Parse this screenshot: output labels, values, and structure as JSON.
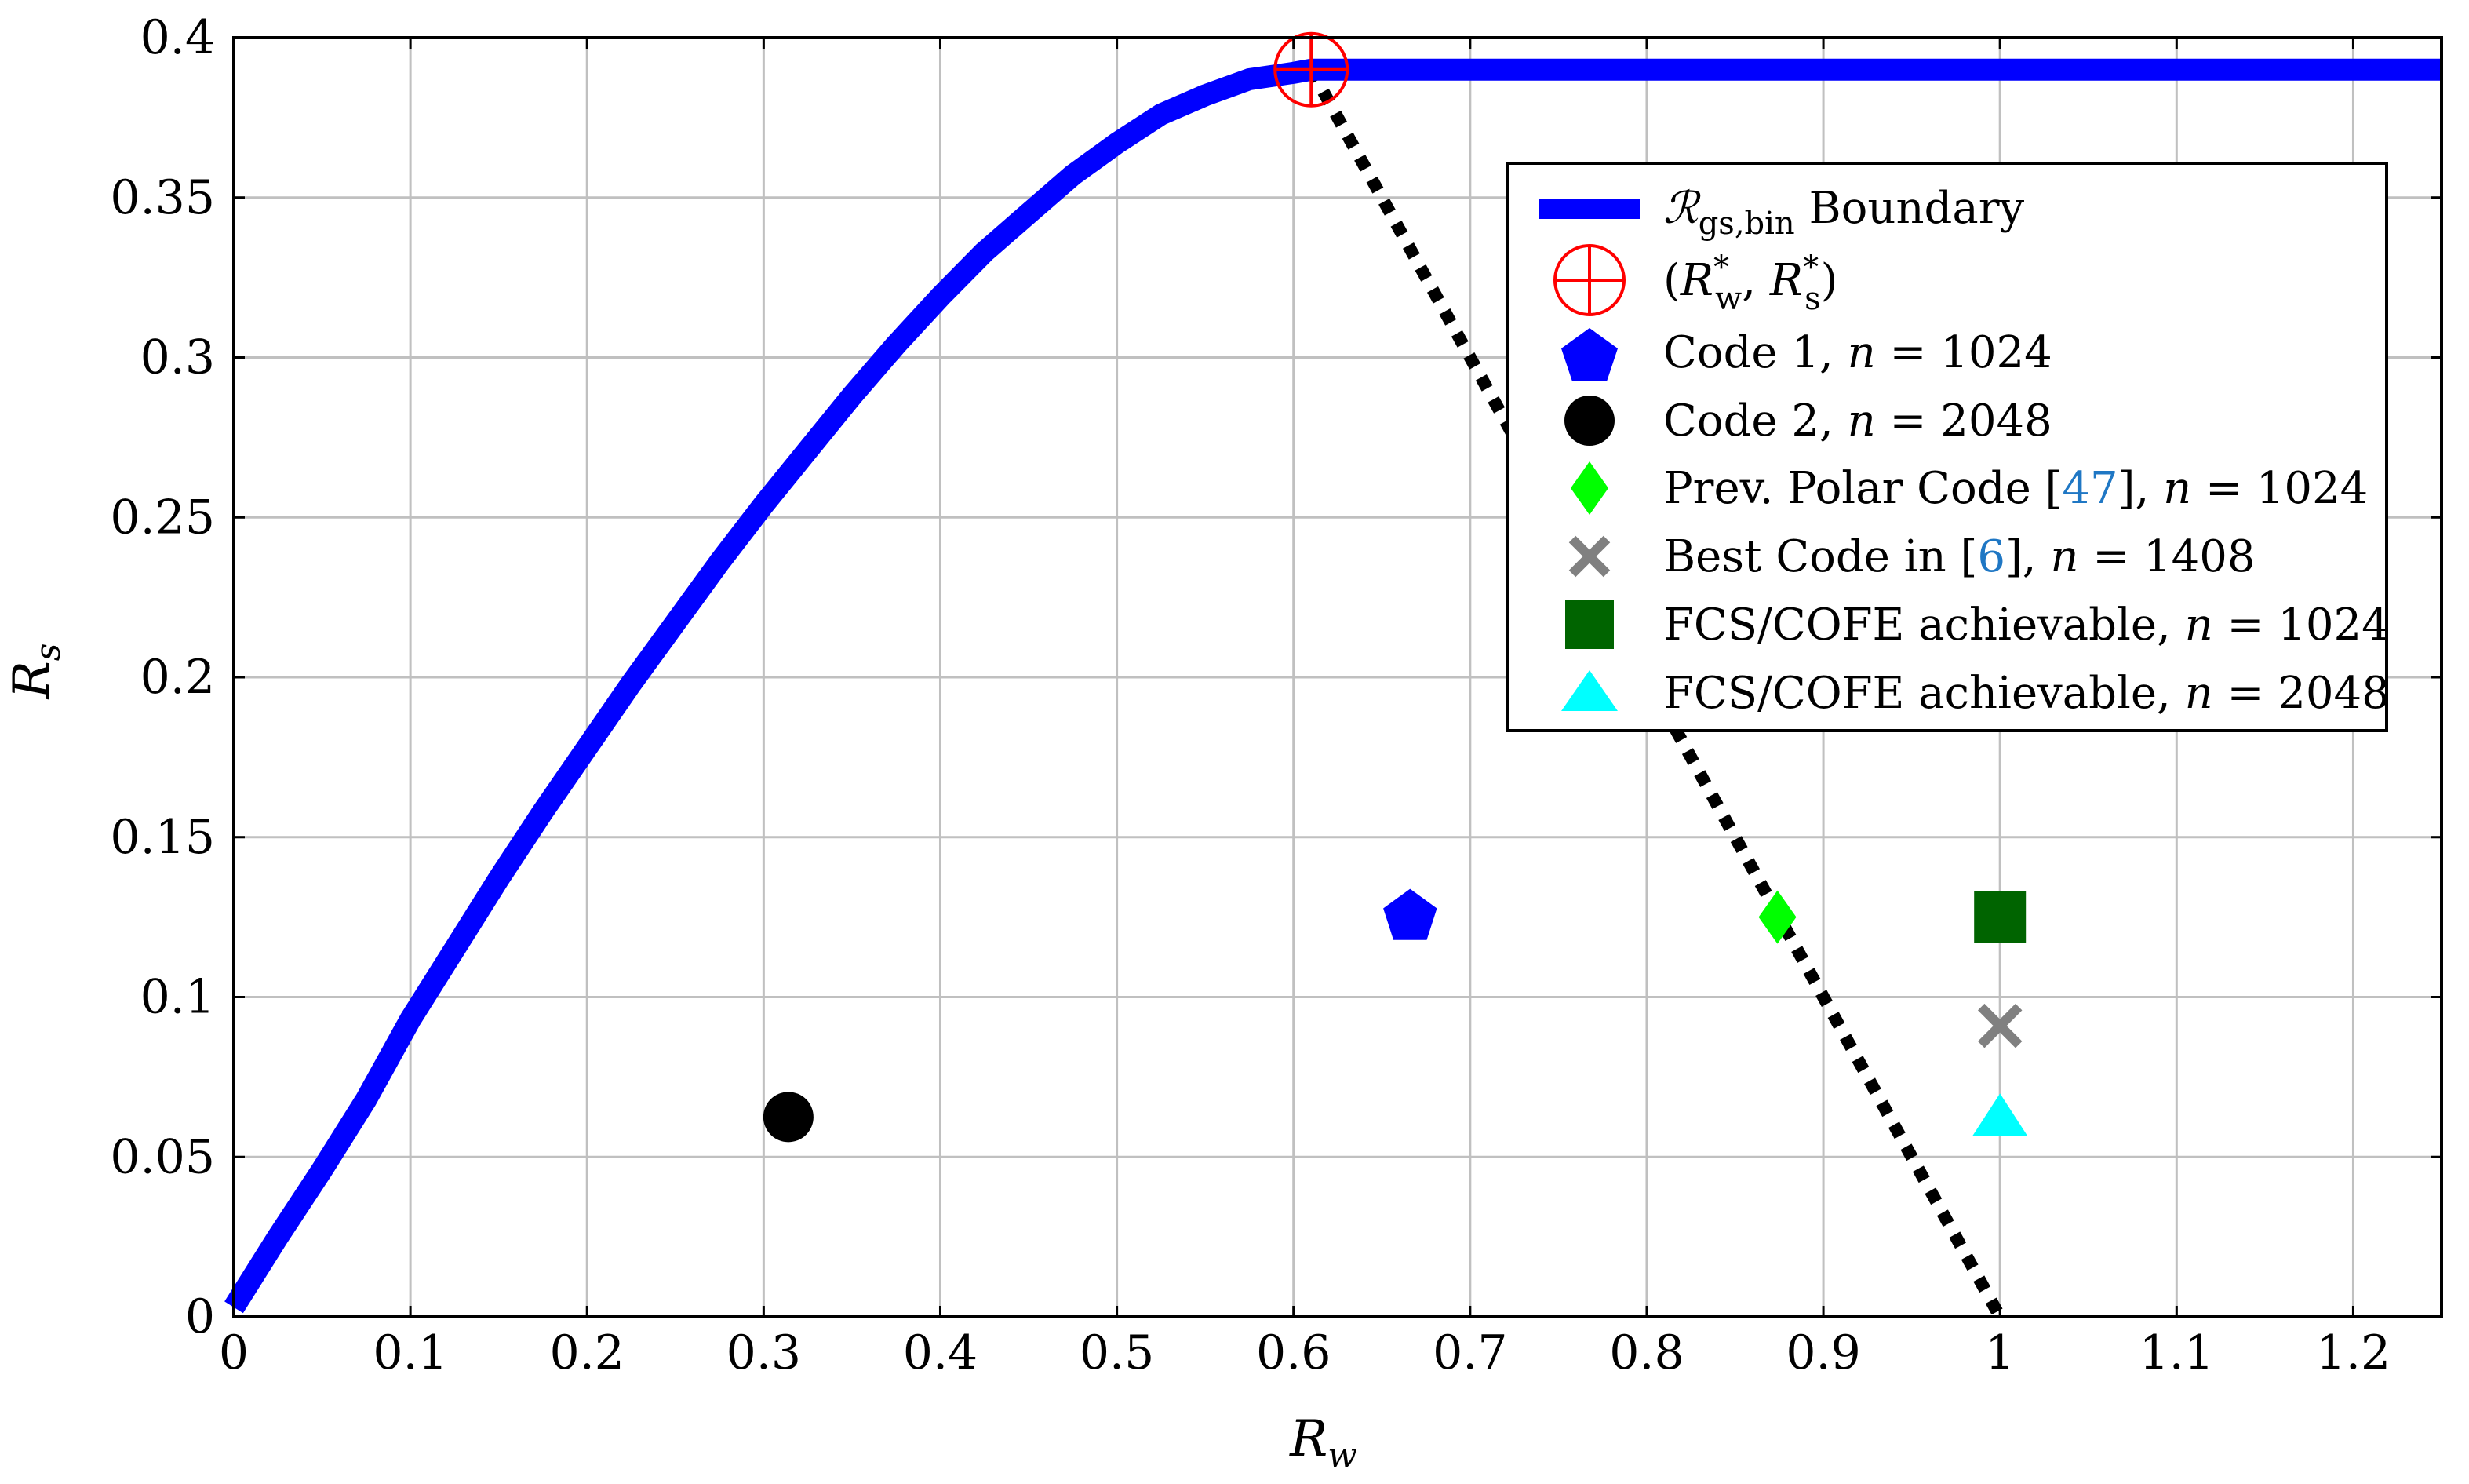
{
  "chart_data": {
    "type": "scatter",
    "title": "",
    "xlabel": "R_w",
    "ylabel": "R_s",
    "xlim": [
      0,
      1.25
    ],
    "ylim": [
      0,
      0.4
    ],
    "x_ticks": [
      0,
      0.1,
      0.2,
      0.3,
      0.4,
      0.5,
      0.6,
      0.7,
      0.8,
      0.9,
      1,
      1.1,
      1.2
    ],
    "x_tick_labels": [
      "0",
      "0.1",
      "0.2",
      "0.3",
      "0.4",
      "0.5",
      "0.6",
      "0.7",
      "0.8",
      "0.9",
      "1",
      "1.1",
      "1.2"
    ],
    "y_ticks": [
      0,
      0.05,
      0.1,
      0.15,
      0.2,
      0.25,
      0.3,
      0.35,
      0.4
    ],
    "y_tick_labels": [
      "0",
      "0.05",
      "0.1",
      "0.15",
      "0.2",
      "0.25",
      "0.3",
      "0.35",
      "0.4"
    ],
    "grid": true,
    "legend_position": "top-right",
    "series": [
      {
        "name": "ℛgs,bin Boundary",
        "kind": "line",
        "color": "#0000ff",
        "x": [
          0,
          0.025,
          0.05,
          0.075,
          0.1,
          0.125,
          0.15,
          0.175,
          0.2,
          0.225,
          0.25,
          0.275,
          0.3,
          0.325,
          0.35,
          0.375,
          0.4,
          0.425,
          0.45,
          0.475,
          0.5,
          0.525,
          0.55,
          0.575,
          0.6,
          0.61,
          1.25
        ],
        "y": [
          0.003,
          0.025,
          0.046,
          0.068,
          0.093,
          0.115,
          0.137,
          0.158,
          0.178,
          0.198,
          0.217,
          0.236,
          0.254,
          0.271,
          0.288,
          0.304,
          0.319,
          0.333,
          0.345,
          0.357,
          0.367,
          0.376,
          0.382,
          0.387,
          0.389,
          0.39,
          0.39
        ]
      },
      {
        "name": "(R*w, R*s)",
        "kind": "crosshair-circle",
        "color": "#ff0000",
        "x": [
          0.61
        ],
        "y": [
          0.39
        ]
      },
      {
        "name": "Code 1, n = 1024",
        "kind": "pentagon",
        "color": "#0000ff",
        "x": [
          0.666
        ],
        "y": [
          0.125
        ]
      },
      {
        "name": "Code 2, n = 2048",
        "kind": "circle",
        "color": "#000000",
        "x": [
          0.314
        ],
        "y": [
          0.0625
        ]
      },
      {
        "name": "Prev. Polar Code [47], n = 1024",
        "kind": "diamond",
        "color": "#00ff00",
        "x": [
          0.874
        ],
        "y": [
          0.125
        ]
      },
      {
        "name": "Best Code in [6], n = 1408",
        "kind": "x",
        "color": "#808080",
        "x": [
          1.0
        ],
        "y": [
          0.091
        ]
      },
      {
        "name": "FCS/COFE achievable, n = 1024",
        "kind": "square",
        "color": "#006400",
        "x": [
          1.0
        ],
        "y": [
          0.125
        ]
      },
      {
        "name": "FCS/COFE achievable, n = 2048",
        "kind": "triangle",
        "color": "#00ffff",
        "x": [
          1.0
        ],
        "y": [
          0.0625
        ]
      }
    ],
    "lines": [
      {
        "kind": "dotted",
        "color": "#000000",
        "x": [
          0.61,
          1.0
        ],
        "y": [
          0.39,
          0.0
        ]
      }
    ],
    "legend": {
      "boundary": {
        "prefix": "ℛ",
        "sub": "gs,bin",
        "suffix": " Boundary"
      },
      "rstar": {
        "open": "(",
        "r1": "R",
        "sup1": "*",
        "sub1": "w",
        "comma": ", ",
        "r2": "R",
        "sup2": "*",
        "sub2": "s",
        "close": ")"
      },
      "code1": {
        "text": "Code 1, ",
        "n": "n",
        "eq": " = 1024"
      },
      "code2": {
        "text": "Code 2, ",
        "n": "n",
        "eq": " = 2048"
      },
      "prev": {
        "text": "Prev. Polar Code [",
        "ref": "47",
        "text2": "], ",
        "n": "n",
        "eq": " = 1024"
      },
      "best": {
        "text": "Best Code in [",
        "ref": "6",
        "text2": "], ",
        "n": "n",
        "eq": " = 1408"
      },
      "fcs1": {
        "text": "FCS/COFE achievable, ",
        "n": "n",
        "eq": " = 1024"
      },
      "fcs2": {
        "text": "FCS/COFE achievable, ",
        "n": "n",
        "eq": " = 2048"
      }
    },
    "axis_text": {
      "x": {
        "main": "R",
        "sub": "w"
      },
      "y": {
        "main": "R",
        "sub": "s"
      }
    }
  }
}
